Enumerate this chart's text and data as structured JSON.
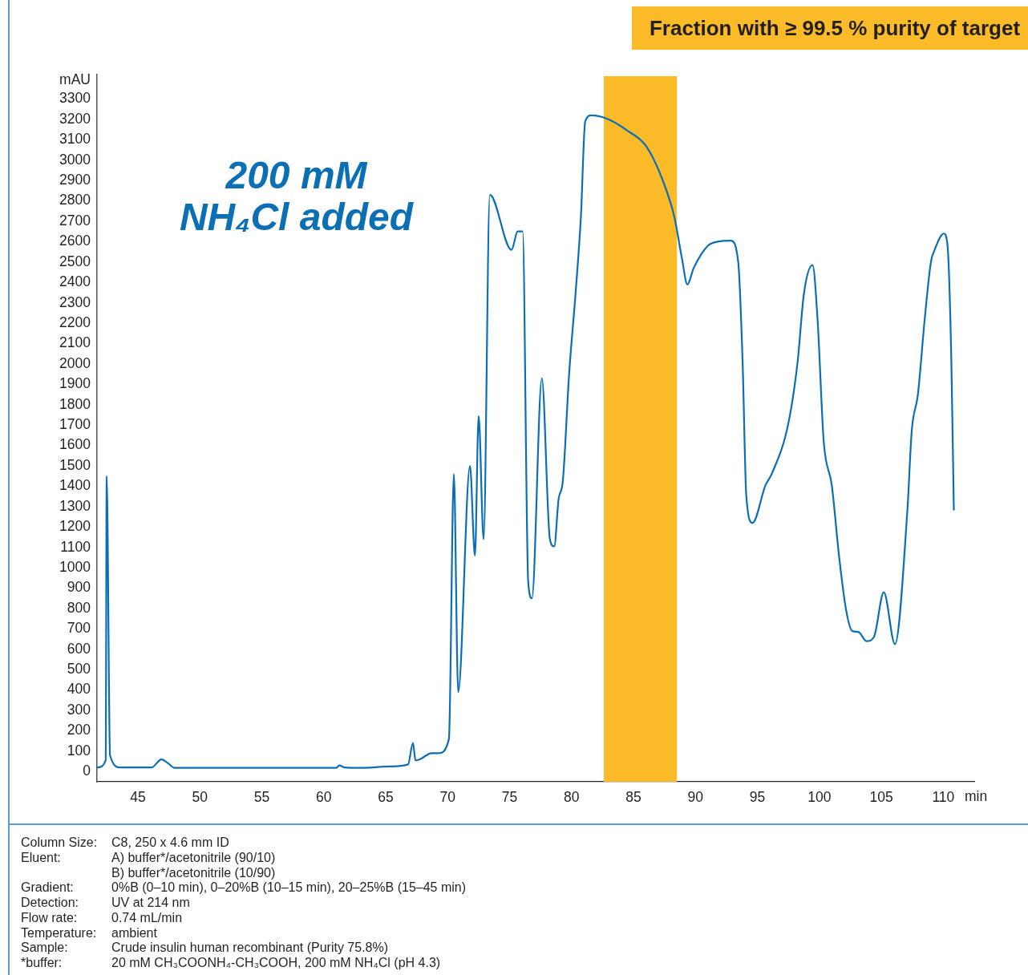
{
  "chart_data": {
    "type": "line",
    "xlabel": "min",
    "ylabel": "mAU",
    "x": [
      41.7,
      42.4,
      42.48,
      42.75,
      43.6,
      46.1,
      46.9,
      47.45,
      47.95,
      61.0,
      61.25,
      61.7,
      62.8,
      65.4,
      66.8,
      67.2,
      67.4,
      67.75,
      68.7,
      69.25,
      70.1,
      70.5,
      70.85,
      71.8,
      72.2,
      72.5,
      72.9,
      73.4,
      75.15,
      75.65,
      76.05,
      76.5,
      76.8,
      77.6,
      78.25,
      78.6,
      78.95,
      79.3,
      79.8,
      80.3,
      80.75,
      81.1,
      81.6,
      83.0,
      84.5,
      86.0,
      87.3,
      88.3,
      88.9,
      89.35,
      89.85,
      91.0,
      91.8,
      92.85,
      93.45,
      93.8,
      94.1,
      94.6,
      95.65,
      96.15,
      97.5,
      98.25,
      98.75,
      99.45,
      99.85,
      100.35,
      101.0,
      101.6,
      102.15,
      102.65,
      103.15,
      103.8,
      104.4,
      105.2,
      106.1,
      107.1,
      107.45,
      107.95,
      108.5,
      109.0,
      109.3,
      110.05,
      110.35,
      110.65,
      110.85
    ],
    "series": [
      {
        "color": "#0b6fb6",
        "values": [
          20,
          55,
          1450,
          80,
          20,
          20,
          60,
          40,
          18,
          18,
          30,
          20,
          18,
          25,
          35,
          140,
          55,
          60,
          90,
          90,
          160,
          1460,
          390,
          1500,
          1060,
          1745,
          1140,
          2830,
          2560,
          2650,
          2650,
          930,
          850,
          1930,
          1140,
          1105,
          1335,
          1430,
          1950,
          2330,
          2720,
          3190,
          3220,
          3200,
          3145,
          3070,
          2910,
          2720,
          2520,
          2390,
          2470,
          2580,
          2600,
          2605,
          2500,
          2015,
          1355,
          1220,
          1405,
          1460,
          1710,
          2015,
          2345,
          2485,
          2220,
          1620,
          1405,
          1050,
          795,
          690,
          685,
          640,
          660,
          880,
          625,
          1280,
          1670,
          1850,
          2220,
          2500,
          2560,
          2640,
          2575,
          2015,
          1285
        ]
      }
    ],
    "xlim": [
      41.7,
      112.5
    ],
    "xticks": [
      45,
      50,
      55,
      60,
      65,
      70,
      75,
      80,
      85,
      90,
      95,
      100,
      105,
      110
    ],
    "ylim": [
      -50,
      3420
    ],
    "yticks": [
      0,
      100,
      200,
      300,
      400,
      500,
      600,
      700,
      800,
      900,
      1000,
      1100,
      1200,
      1300,
      1400,
      1500,
      1600,
      1700,
      1800,
      1900,
      2000,
      2100,
      2200,
      2300,
      2400,
      2500,
      2600,
      2700,
      2800,
      2900,
      3000,
      3100,
      3200,
      3300
    ],
    "line_style": "solid",
    "bands": [
      {
        "axis": "x",
        "from": 82.6,
        "to": 88.5,
        "label": "Fraction with ≥ 99.5 % purity of target",
        "color": "#fbba27"
      }
    ],
    "annotations": [
      "200 mM NH₄Cl added",
      "Column Size: C8, 250 x 4.6 mm ID",
      "Eluent: A) buffer*/acetonitrile (90/10)",
      "B) buffer*/acetonitrile (10/90)",
      "Gradient: 0%B (0–10 min), 0–20%B (10–15 min), 20–25%B (15–45 min)",
      "Detection: UV at 214 nm",
      "Flow rate: 0.74 mL/min",
      "Temperature: ambient",
      "Sample: Crude insulin human recombinant (Purity 75.8%)",
      "*buffer: 20 mM CH₃COONH₄-CH₃COOH, 200 mM NH₄Cl (pH 4.3)"
    ]
  }
}
